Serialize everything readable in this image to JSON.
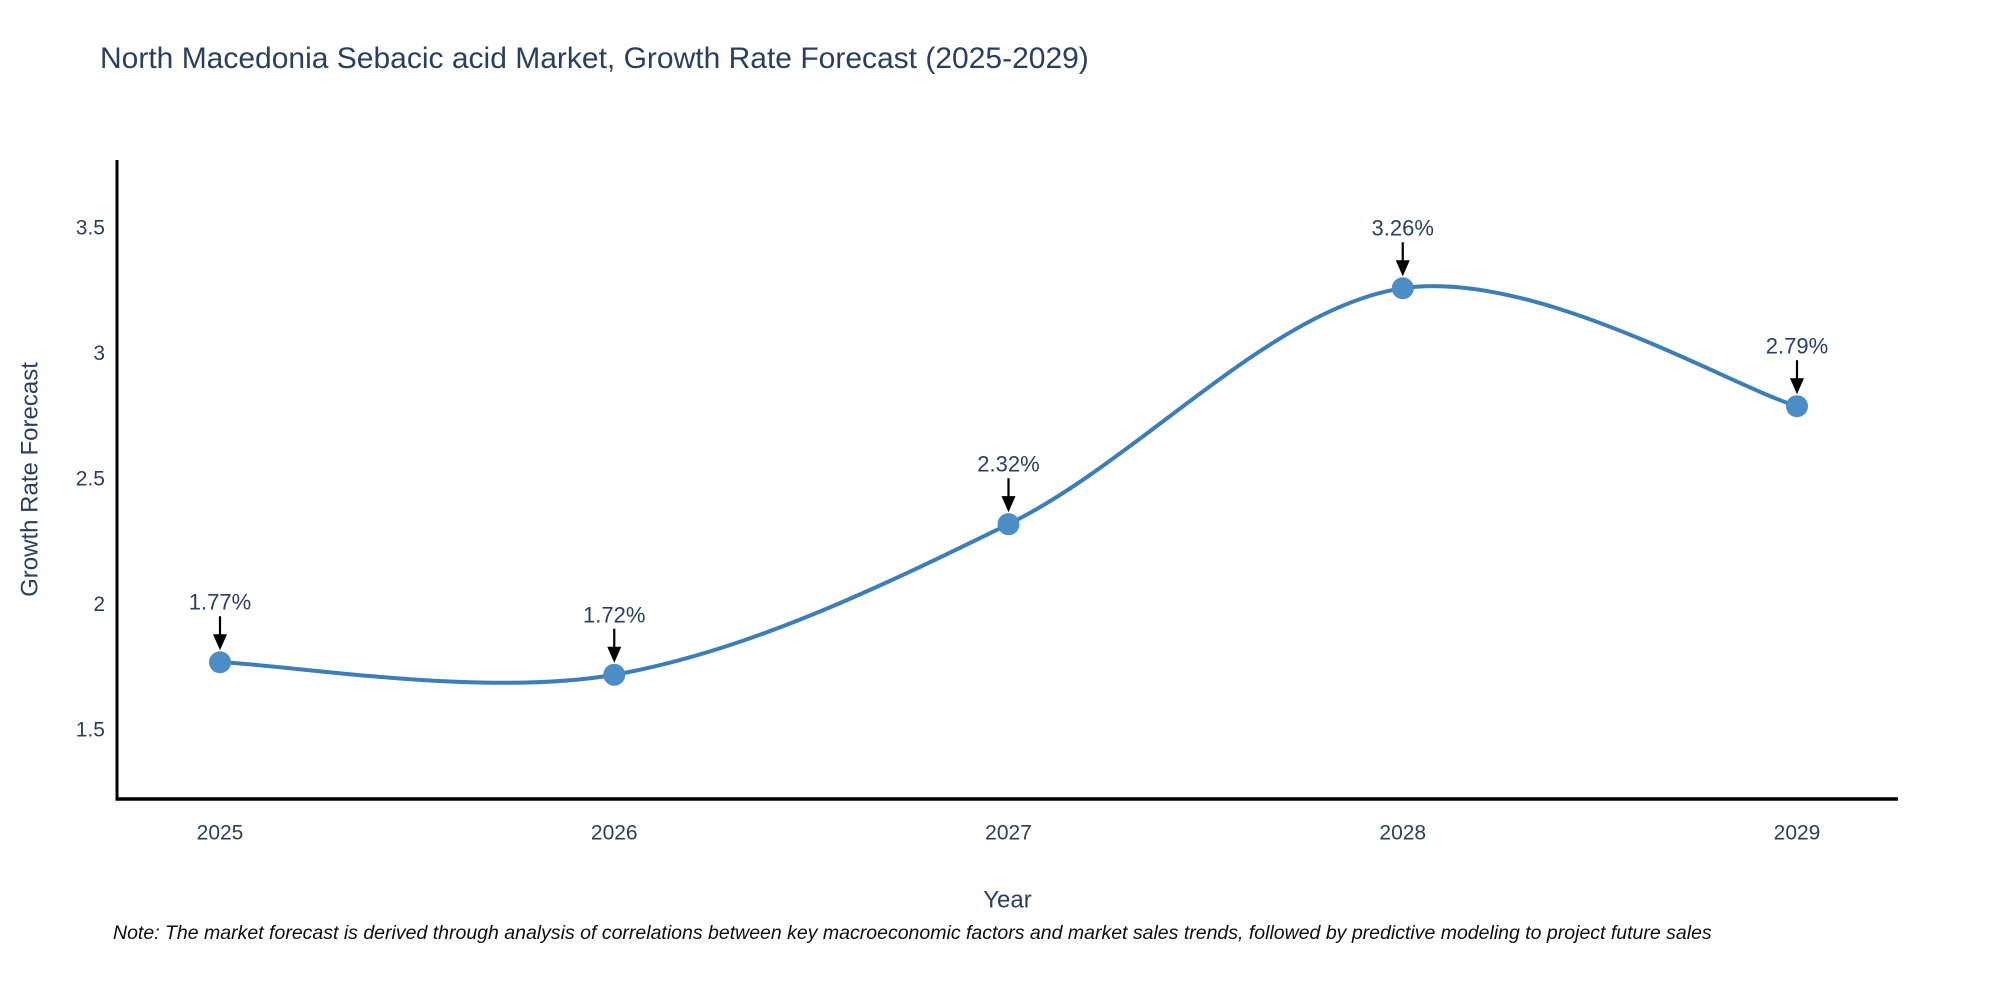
{
  "title": "North Macedonia Sebacic acid Market, Growth Rate Forecast (2025-2029)",
  "note": "Note: The market forecast is derived through analysis of correlations between key macroeconomic factors and market sales trends, followed by predictive modeling to project future sales",
  "chart_data": {
    "type": "line",
    "title": "North Macedonia Sebacic acid Market, Growth Rate Forecast (2025-2029)",
    "xlabel": "Year",
    "ylabel": "Growth Rate Forecast",
    "categories": [
      "2025",
      "2026",
      "2027",
      "2028",
      "2029"
    ],
    "values": [
      1.77,
      1.72,
      2.32,
      3.26,
      2.79
    ],
    "point_labels": [
      "1.77%",
      "1.72%",
      "2.32%",
      "3.26%",
      "2.79%"
    ],
    "yticks": [
      1.5,
      2,
      2.5,
      3,
      3.5
    ],
    "ylim": [
      1.22,
      3.77
    ],
    "line_shape": "spline",
    "grid": false,
    "legend": "none",
    "colors": {
      "line": "#3d7db8",
      "marker": "#4b8dc4",
      "axis": "#000000",
      "text": "#2a3f5f",
      "annotation_arrow": "#000000",
      "note_text": "#0d0d0d",
      "background": "#ffffff"
    }
  }
}
